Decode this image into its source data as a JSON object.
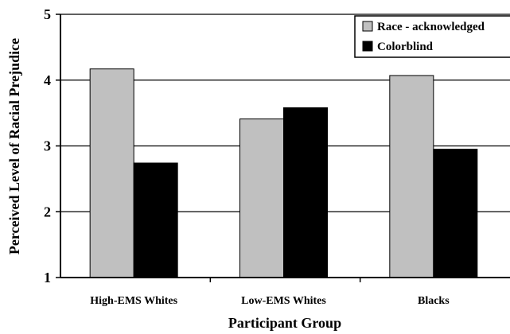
{
  "chart_data": {
    "type": "bar",
    "title": "",
    "xlabel": "Participant Group",
    "ylabel": "Perceived Level of Racial Prejudice",
    "categories": [
      "High-EMS Whites",
      "Low-EMS Whites",
      "Blacks"
    ],
    "series": [
      {
        "name": "Race - acknowledged",
        "values": [
          4.17,
          3.41,
          4.07
        ],
        "color": "#c0c0c0"
      },
      {
        "name": "Colorblind",
        "values": [
          2.74,
          3.58,
          2.95
        ],
        "color": "#000000"
      }
    ],
    "ylim": [
      1,
      5
    ],
    "yticks": [
      1,
      2,
      3,
      4,
      5
    ],
    "grid": true,
    "legend": "top-right"
  }
}
